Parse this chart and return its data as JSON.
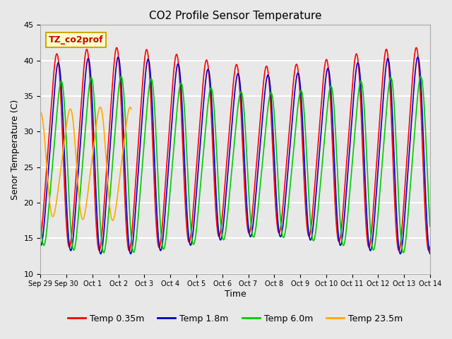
{
  "title": "CO2 Profile Sensor Temperature",
  "xlabel": "Time",
  "ylabel": "Senor Temperature (C)",
  "ylim": [
    10,
    45
  ],
  "yticks": [
    10,
    15,
    20,
    25,
    30,
    35,
    40,
    45
  ],
  "background_color": "#e8e8e8",
  "plot_bg_color": "#e8e8e8",
  "grid_color": "white",
  "annotation_text": "TZ_co2prof",
  "annotation_bg": "#ffffcc",
  "annotation_edge": "#ccaa00",
  "series": [
    {
      "label": "Temp 0.35m",
      "color": "#ff0000"
    },
    {
      "label": "Temp 1.8m",
      "color": "#0000cc"
    },
    {
      "label": "Temp 6.0m",
      "color": "#00cc00"
    },
    {
      "label": "Temp 23.5m",
      "color": "#ffaa00"
    }
  ],
  "num_days": 15,
  "cycles": 13,
  "base_min": 15.0,
  "base_max": 40.0,
  "phase_shifts": [
    0.0,
    0.05,
    0.15,
    0.45
  ],
  "amp_scales": [
    1.0,
    0.95,
    0.85,
    0.65
  ],
  "min_offsets": [
    0.0,
    -0.5,
    -0.5,
    3.5
  ],
  "tick_positions": [
    0,
    1,
    2,
    3,
    4,
    5,
    6,
    7,
    8,
    9,
    10,
    11,
    12,
    13,
    14,
    15
  ],
  "tick_labels": [
    "Sep 29",
    "Sep 30",
    "Oct 1",
    "Oct 2",
    "Oct 3",
    "Oct 4",
    "Oct 5",
    "Oct 6",
    "Oct 7",
    "Oct 8",
    "Oct 9",
    "Oct 10",
    "Oct 11",
    "Oct 12",
    "Oct 13",
    "Oct 14"
  ]
}
